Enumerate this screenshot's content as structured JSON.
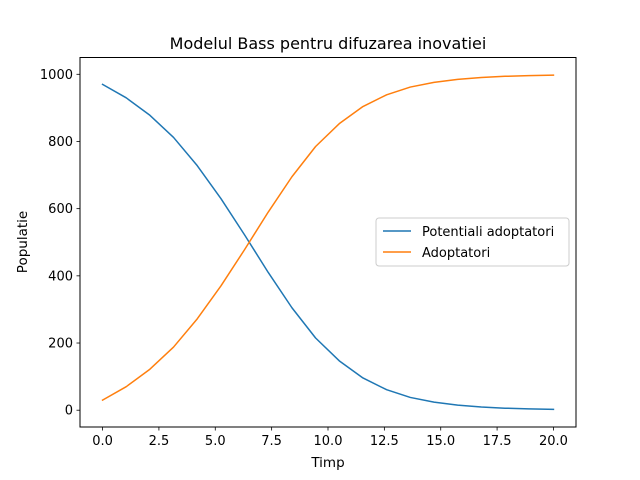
{
  "chart_data": {
    "type": "line",
    "title": "Modelul Bass pentru difuzarea inovatiei",
    "xlabel": "Timp",
    "ylabel": "Populatie",
    "xlim": [
      -1,
      21
    ],
    "ylim": [
      -50,
      1050
    ],
    "xticks": [
      0.0,
      2.5,
      5.0,
      7.5,
      10.0,
      12.5,
      15.0,
      17.5,
      20.0
    ],
    "xtick_labels": [
      "0.0",
      "2.5",
      "5.0",
      "7.5",
      "10.0",
      "12.5",
      "15.0",
      "17.5",
      "20.0"
    ],
    "yticks": [
      0,
      200,
      400,
      600,
      800,
      1000
    ],
    "ytick_labels": [
      "0",
      "200",
      "400",
      "600",
      "800",
      "1000"
    ],
    "grid": false,
    "legend_position": "center-right",
    "x": [
      0.0,
      1.05,
      2.1,
      3.15,
      4.2,
      5.25,
      6.3,
      7.35,
      8.4,
      9.45,
      10.5,
      11.55,
      12.6,
      13.65,
      14.7,
      15.75,
      16.8,
      17.85,
      18.9,
      20.0
    ],
    "series": [
      {
        "name": "Potentiali adoptatori",
        "color": "#1f77b4",
        "values": [
          970,
          930,
          878,
          812,
          728,
          630,
          522,
          410,
          305,
          215,
          147,
          96,
          61,
          38,
          24,
          15,
          9.5,
          6,
          4,
          2.5
        ]
      },
      {
        "name": "Adoptatori",
        "color": "#ff7f0e",
        "values": [
          30,
          70,
          122,
          188,
          272,
          370,
          478,
          590,
          695,
          785,
          853,
          904,
          939,
          962,
          976,
          985,
          990.5,
          994,
          996,
          997.5
        ]
      }
    ]
  }
}
